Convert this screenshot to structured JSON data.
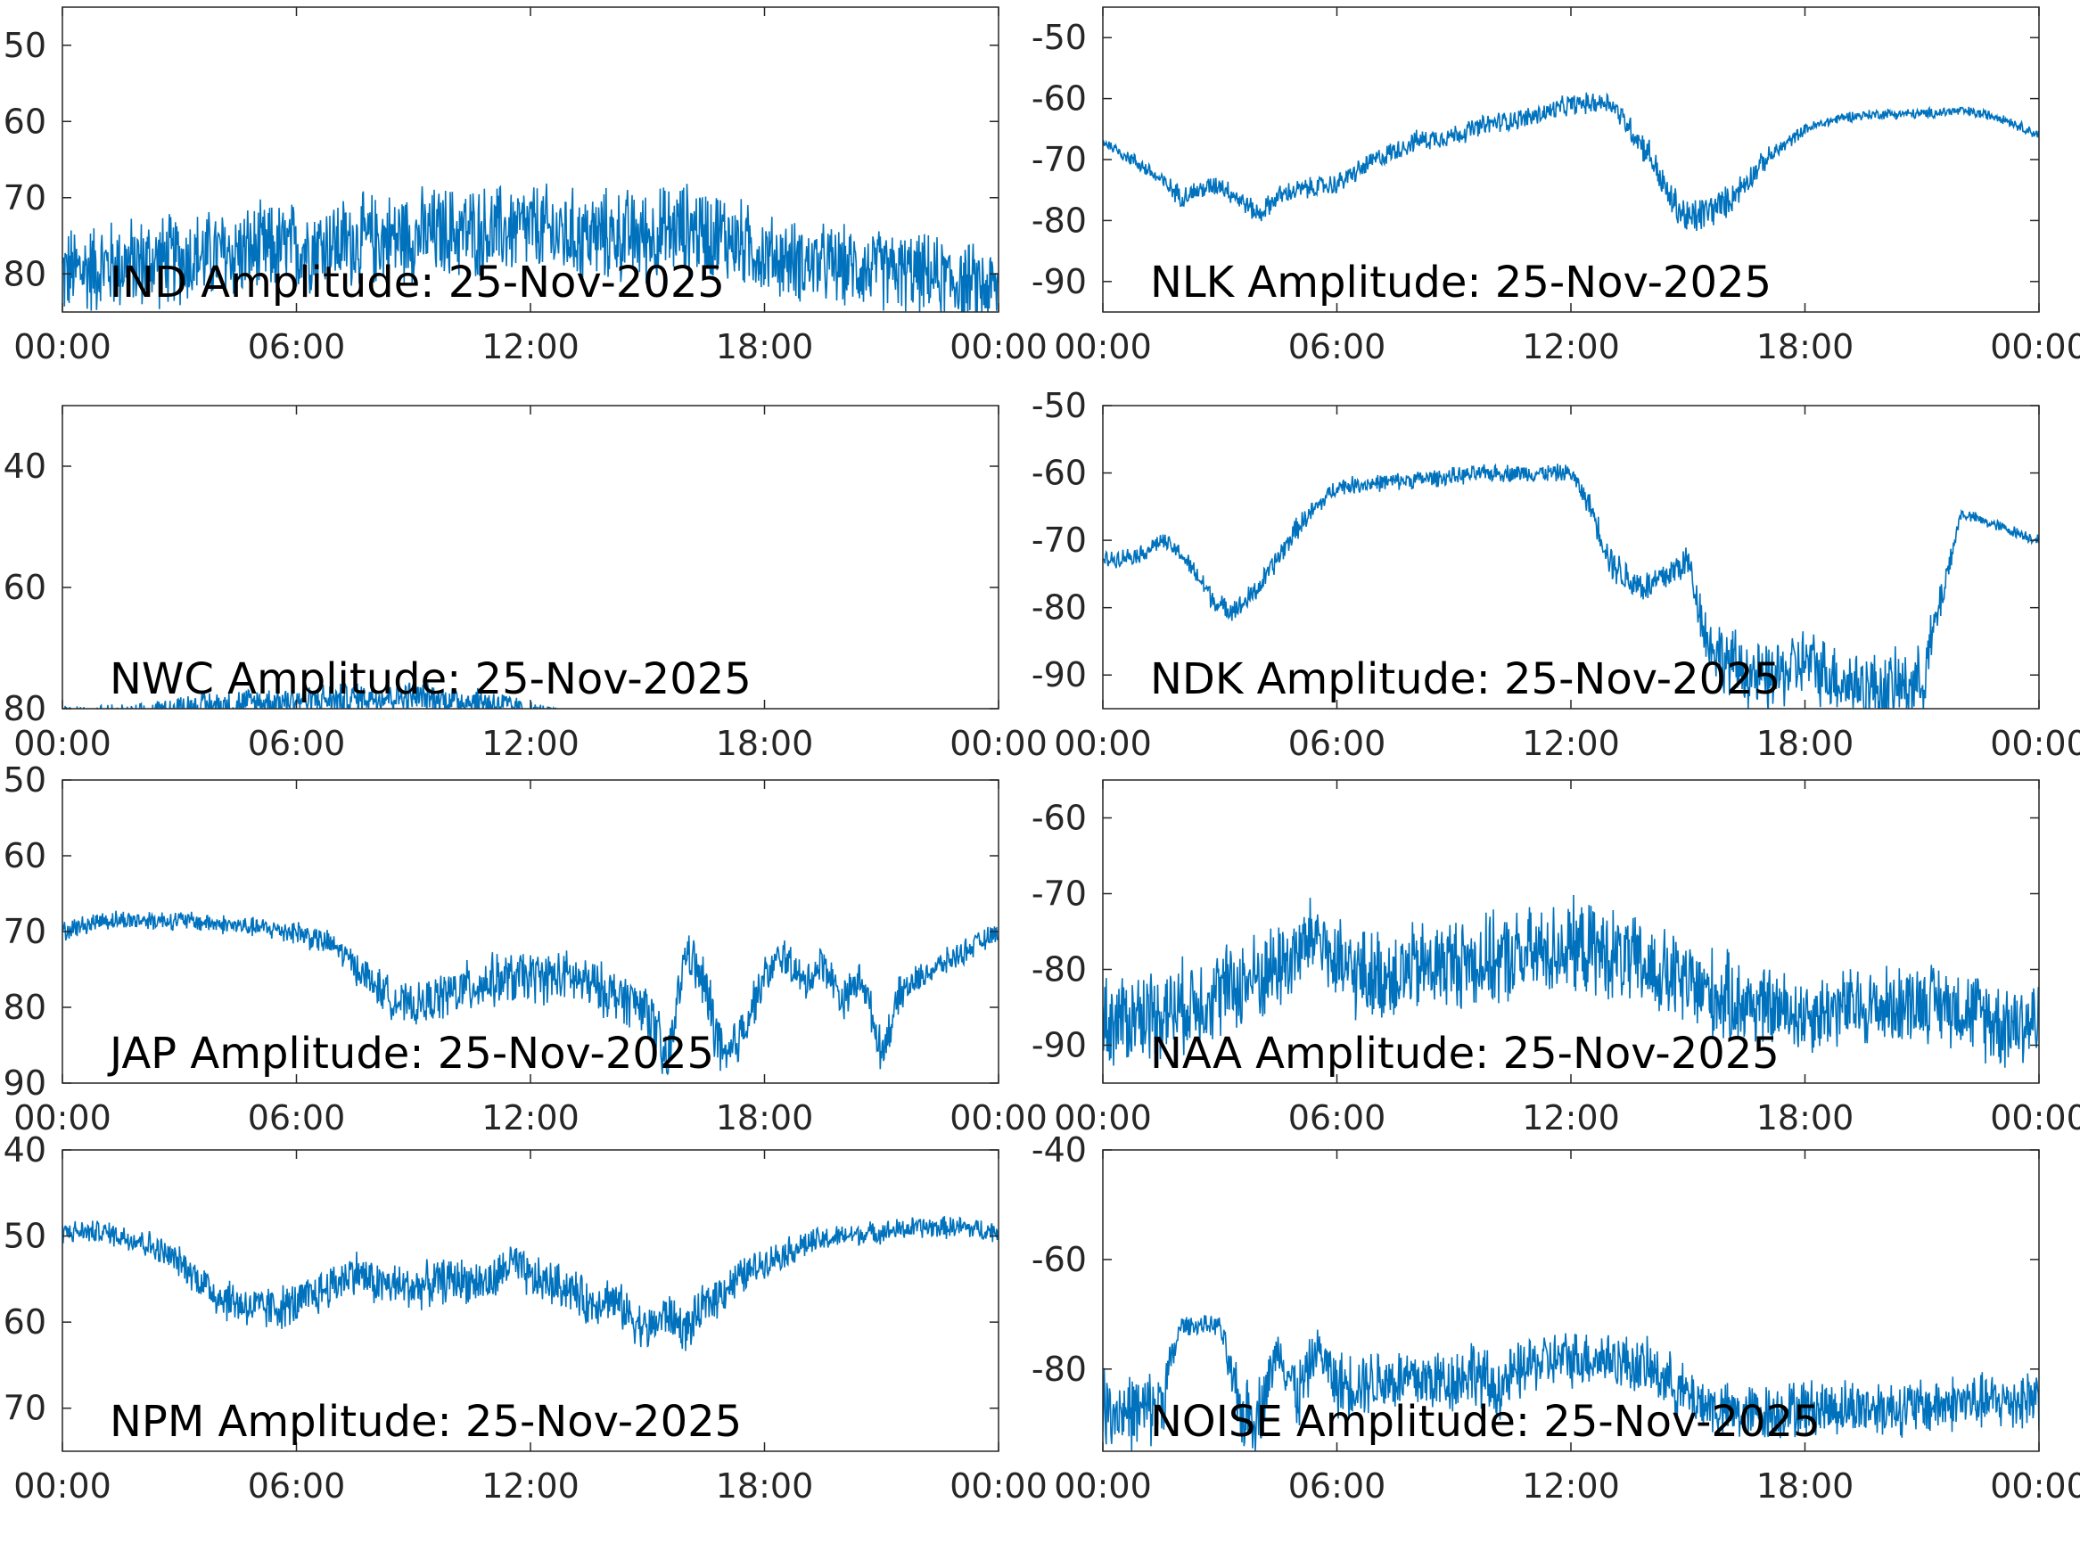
{
  "figure": {
    "line_color": "#0072bd",
    "axes_color": "#262626",
    "background": "#ffffff"
  },
  "chart_data": [
    {
      "type": "line",
      "title": "IND Amplitude: 25-Nov-2025",
      "xticks": [
        "00:00",
        "06:00",
        "12:00",
        "18:00",
        "00:00"
      ],
      "xlim_hours": [
        0,
        24
      ],
      "ylim": [
        -85,
        -45
      ],
      "yticks": [
        -50,
        -60,
        -70,
        -80
      ],
      "ytick_labels": [
        "50",
        "60",
        "70",
        "80"
      ],
      "series": [
        {
          "x_hours": [
            0,
            1,
            2,
            3,
            4,
            5,
            6,
            7,
            8,
            9,
            10,
            11,
            12,
            13,
            14,
            15,
            16,
            17,
            18,
            19,
            20,
            21,
            22,
            23,
            24
          ],
          "center": [
            -80,
            -79,
            -78.5,
            -78,
            -77.5,
            -77,
            -76.5,
            -76,
            -75.5,
            -75,
            -74.5,
            -74.5,
            -74,
            -75,
            -75,
            -75,
            -74,
            -75,
            -77.5,
            -78.5,
            -79,
            -79.5,
            -80,
            -81,
            -82
          ],
          "spread": [
            7,
            7,
            7,
            7,
            7,
            7,
            7,
            7,
            7,
            7,
            7,
            7,
            7,
            7,
            7,
            7,
            7,
            7,
            6,
            6,
            6,
            6,
            6,
            6,
            6
          ]
        }
      ]
    },
    {
      "type": "line",
      "title": "NLK Amplitude: 25-Nov-2025",
      "xticks": [
        "00:00",
        "06:00",
        "12:00",
        "18:00",
        "00:00"
      ],
      "xlim_hours": [
        0,
        24
      ],
      "ylim": [
        -95,
        -45
      ],
      "yticks": [
        -50,
        -60,
        -70,
        -80,
        -90
      ],
      "ytick_labels": [
        "-50",
        "-60",
        "-70",
        "-80",
        "-90"
      ],
      "series": [
        {
          "x_hours": [
            0,
            1,
            2,
            2.5,
            3,
            4,
            4.5,
            5,
            6,
            7,
            8,
            9,
            10,
            11,
            12,
            13,
            14,
            14.5,
            15,
            16,
            17,
            18,
            19,
            20,
            21,
            22,
            23,
            24
          ],
          "center": [
            -67,
            -71,
            -76,
            -75,
            -74,
            -79,
            -76,
            -75,
            -74,
            -70,
            -67,
            -66,
            -64,
            -63,
            -61,
            -60.5,
            -69,
            -76,
            -80,
            -77,
            -70,
            -65,
            -63,
            -62.5,
            -62.5,
            -62,
            -63,
            -66
          ],
          "spread": [
            1,
            1.5,
            2,
            2,
            2,
            2,
            2,
            2,
            2,
            2,
            2,
            2,
            2,
            2,
            2,
            2,
            3,
            3,
            4,
            3,
            2,
            1,
            1,
            1,
            1,
            1,
            1,
            1
          ]
        }
      ]
    },
    {
      "type": "line",
      "title": "NWC Amplitude: 25-Nov-2025",
      "xticks": [
        "00:00",
        "06:00",
        "12:00",
        "18:00",
        "00:00"
      ],
      "xlim_hours": [
        0,
        24
      ],
      "ylim": [
        -80,
        -30
      ],
      "yticks": [
        -40,
        -60,
        -80
      ],
      "ytick_labels": [
        "40",
        "60",
        "80"
      ],
      "series": [
        {
          "x_hours": [
            0,
            1,
            2,
            3,
            4,
            5,
            6,
            7,
            8,
            9,
            10,
            11,
            12,
            13,
            14,
            15,
            16,
            17,
            18,
            19,
            20,
            21,
            22,
            23,
            24
          ],
          "center": [
            -81,
            -81,
            -81,
            -80,
            -79.5,
            -79,
            -78.5,
            -78.5,
            -78,
            -78,
            -78.5,
            -79,
            -80.5,
            -81,
            -81.5,
            -81.5,
            -81.5,
            -81.5,
            -81.5,
            -81.5,
            -81.5,
            -81.5,
            -81.5,
            -81.5,
            -81.5
          ],
          "spread": [
            2,
            2,
            2,
            3,
            3,
            3,
            3,
            3,
            3,
            3,
            3,
            3,
            2,
            1,
            1,
            1,
            1,
            1,
            1,
            1,
            1,
            1,
            1,
            1,
            1
          ]
        }
      ]
    },
    {
      "type": "line",
      "title": "NDK Amplitude: 25-Nov-2025",
      "xticks": [
        "00:00",
        "06:00",
        "12:00",
        "18:00",
        "00:00"
      ],
      "xlim_hours": [
        0,
        24
      ],
      "ylim": [
        -95,
        -50
      ],
      "yticks": [
        -50,
        -60,
        -70,
        -80,
        -90
      ],
      "ytick_labels": [
        "-50",
        "-60",
        "-70",
        "-80",
        "-90"
      ],
      "series": [
        {
          "x_hours": [
            0,
            1,
            1.5,
            2,
            2.5,
            3,
            3.5,
            4,
            5,
            6,
            7,
            8,
            9,
            10,
            11,
            12,
            12.5,
            13,
            13.5,
            14,
            15,
            15.5,
            16,
            17,
            18,
            19,
            20,
            21,
            22,
            23,
            24
          ],
          "center": [
            -73,
            -72,
            -70,
            -72,
            -76,
            -80,
            -80,
            -77,
            -68,
            -62,
            -61.5,
            -61,
            -60.5,
            -60,
            -60,
            -60,
            -65,
            -73,
            -76,
            -77,
            -73,
            -85,
            -88,
            -91,
            -88,
            -91,
            -92,
            -91,
            -66,
            -68,
            -70
          ],
          "spread": [
            1.5,
            1.5,
            1.5,
            1.5,
            2,
            2,
            2,
            2,
            2,
            1.5,
            1.5,
            1.5,
            1.5,
            1.5,
            1.5,
            1.5,
            2,
            3,
            3,
            3,
            3,
            5,
            6,
            6,
            6,
            6,
            6,
            6,
            1,
            1,
            1
          ]
        }
      ]
    },
    {
      "type": "line",
      "title": "JAP Amplitude: 25-Nov-2025",
      "xticks": [
        "00:00",
        "06:00",
        "12:00",
        "18:00",
        "00:00"
      ],
      "xlim_hours": [
        0,
        24
      ],
      "ylim": [
        -90,
        -50
      ],
      "yticks": [
        -50,
        -60,
        -70,
        -80,
        -90
      ],
      "ytick_labels": [
        "50",
        "60",
        "70",
        "80",
        "90"
      ],
      "series": [
        {
          "x_hours": [
            0,
            1,
            2,
            3,
            4,
            5,
            6,
            7,
            8,
            8.5,
            9,
            10,
            11,
            12,
            13,
            14,
            15,
            15.5,
            16,
            16.5,
            17,
            17.5,
            18,
            18.5,
            19,
            19.5,
            20,
            20.5,
            21,
            21.5,
            22,
            23,
            24
          ],
          "center": [
            -70,
            -68.5,
            -68.5,
            -68.5,
            -69,
            -69.5,
            -70,
            -72,
            -77,
            -79,
            -80,
            -78,
            -76.5,
            -76,
            -76,
            -78,
            -80,
            -88,
            -72,
            -78,
            -88,
            -82,
            -76,
            -73,
            -77,
            -74,
            -79,
            -76,
            -86,
            -78,
            -76,
            -73,
            -70
          ],
          "spread": [
            1.5,
            1.5,
            1.5,
            1.5,
            1.5,
            1.5,
            2,
            2,
            3,
            3,
            3,
            4,
            4,
            4,
            4,
            4,
            4,
            5,
            3,
            5,
            5,
            4,
            3,
            3,
            3,
            3,
            3,
            3,
            3,
            3,
            2,
            2,
            1.5
          ]
        }
      ]
    },
    {
      "type": "line",
      "title": "NAA Amplitude: 25-Nov-2025",
      "xticks": [
        "00:00",
        "06:00",
        "12:00",
        "18:00",
        "00:00"
      ],
      "xlim_hours": [
        0,
        24
      ],
      "ylim": [
        -95,
        -55
      ],
      "yticks": [
        -60,
        -70,
        -80,
        -90
      ],
      "ytick_labels": [
        "-60",
        "-70",
        "-80",
        "-90"
      ],
      "series": [
        {
          "x_hours": [
            0,
            1,
            2,
            3,
            4,
            5,
            5.5,
            6,
            7,
            8,
            9,
            10,
            11,
            12,
            13,
            14,
            15,
            16,
            17,
            18,
            19,
            20,
            21,
            22,
            23,
            24
          ],
          "center": [
            -87,
            -86,
            -85,
            -83,
            -81,
            -78,
            -75,
            -80,
            -81,
            -80,
            -79,
            -79,
            -78,
            -77,
            -78,
            -80,
            -82,
            -84,
            -85,
            -86,
            -85,
            -85,
            -84,
            -85,
            -87,
            -87
          ],
          "spread": [
            7,
            7,
            7,
            7,
            7,
            7,
            6,
            7,
            7,
            7,
            7,
            7,
            7,
            7,
            7,
            7,
            7,
            7,
            6,
            6,
            6,
            6,
            6,
            6,
            7,
            7
          ]
        }
      ]
    },
    {
      "type": "line",
      "title": "NPM Amplitude: 25-Nov-2025",
      "xticks": [
        "00:00",
        "06:00",
        "12:00",
        "18:00",
        "00:00"
      ],
      "xlim_hours": [
        0,
        24
      ],
      "ylim": [
        -75,
        -40
      ],
      "yticks": [
        -40,
        -50,
        -60,
        -70
      ],
      "ytick_labels": [
        "40",
        "50",
        "60",
        "70"
      ],
      "series": [
        {
          "x_hours": [
            0,
            1,
            2,
            3,
            4,
            5,
            6,
            7,
            7.5,
            8,
            9,
            10,
            11,
            11.5,
            12,
            13,
            13.5,
            14,
            15,
            15.5,
            16,
            16.5,
            17,
            18,
            19,
            20,
            21,
            22,
            23,
            24
          ],
          "center": [
            -49.5,
            -49.5,
            -50.5,
            -53,
            -57,
            -58.5,
            -58,
            -55.5,
            -54,
            -55.5,
            -56,
            -55,
            -55.5,
            -53,
            -55,
            -56,
            -58,
            -57,
            -61,
            -59,
            -61,
            -58,
            -56,
            -53,
            -51,
            -50,
            -49.5,
            -49,
            -49,
            -49.5
          ],
          "spread": [
            1.5,
            1.5,
            2,
            2,
            3,
            3,
            3,
            3,
            3,
            3,
            3,
            3,
            3,
            3,
            3,
            3,
            3,
            3,
            3,
            3,
            3,
            3,
            3,
            2,
            2,
            1.5,
            1.5,
            1.5,
            1.5,
            1.5
          ]
        }
      ]
    },
    {
      "type": "line",
      "title": "NOISE Amplitude: 25-Nov-2025",
      "xticks": [
        "00:00",
        "06:00",
        "12:00",
        "18:00",
        "00:00"
      ],
      "xlim_hours": [
        0,
        24
      ],
      "ylim": [
        -95,
        -40
      ],
      "yticks": [
        -40,
        -60,
        -80
      ],
      "ytick_labels": [
        "-40",
        "-60",
        "-80"
      ],
      "series": [
        {
          "x_hours": [
            0,
            1,
            1.5,
            2,
            2.5,
            3,
            3.5,
            4,
            4.5,
            5,
            5.5,
            6,
            7,
            8,
            9,
            9.5,
            10,
            11,
            12,
            13,
            14,
            14.5,
            15,
            16,
            17,
            18,
            19,
            20,
            21,
            22,
            23,
            24
          ],
          "center": [
            -87,
            -88,
            -86,
            -72,
            -72,
            -72,
            -88,
            -88,
            -76,
            -85,
            -76,
            -83,
            -82,
            -82,
            -82,
            -80,
            -84,
            -79,
            -78,
            -78,
            -80,
            -82,
            -85,
            -88,
            -88,
            -87,
            -87,
            -87,
            -87,
            -86,
            -86,
            -85
          ],
          "spread": [
            8,
            8,
            8,
            2,
            2,
            2,
            8,
            8,
            4,
            8,
            4,
            7,
            7,
            7,
            7,
            7,
            7,
            6,
            6,
            6,
            6,
            6,
            6,
            6,
            6,
            6,
            6,
            6,
            6,
            6,
            6,
            7
          ]
        }
      ]
    }
  ]
}
